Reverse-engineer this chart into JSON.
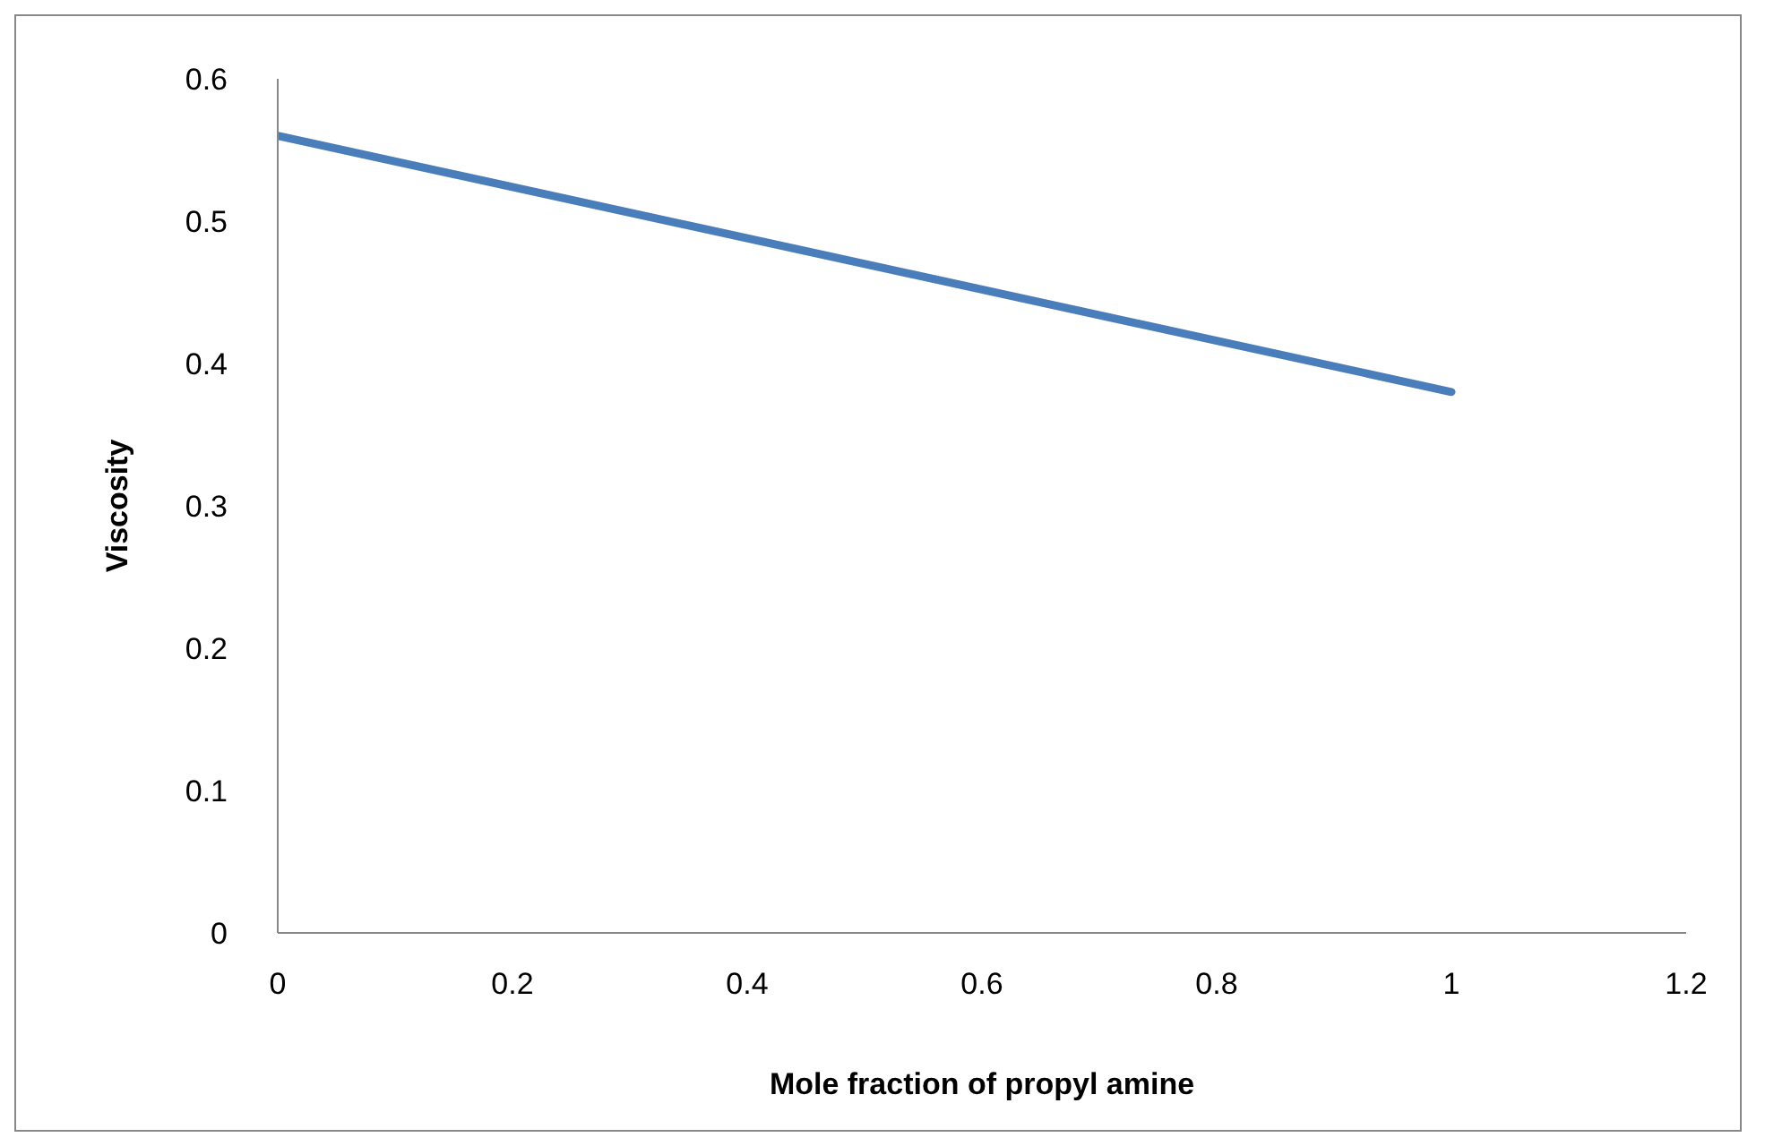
{
  "chart_data": {
    "type": "line",
    "xlabel": "Mole fraction of propyl amine",
    "ylabel": "Viscosity",
    "x": [
      0,
      1
    ],
    "series": [
      {
        "color": "#4a7ebb",
        "values": [
          0.56,
          0.38
        ]
      }
    ],
    "xlim": [
      0,
      1.2
    ],
    "xticks": [
      0,
      0.2,
      0.4,
      0.6,
      0.8,
      1,
      1.2
    ],
    "ylim": [
      0,
      0.6
    ],
    "yticks": [
      0,
      0.1,
      0.2,
      0.3,
      0.4,
      0.5,
      0.6
    ],
    "grid": false,
    "legend": false,
    "marker": "none",
    "line_style": "solid"
  }
}
